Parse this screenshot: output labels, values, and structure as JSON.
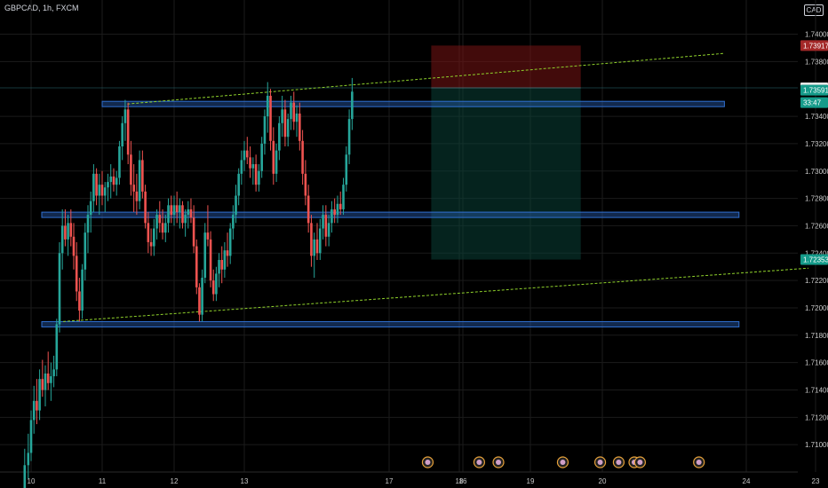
{
  "header": {
    "symbol_label": "GBPCAD, 1h, FXCM",
    "currency": "CAD"
  },
  "chart_data": {
    "type": "candlestick",
    "symbol": "GBPCAD",
    "interval": "1h",
    "source": "FXCM",
    "ylim": [
      1.708,
      1.7425
    ],
    "y_ticks": [
      "1.74000",
      "1.73800",
      "1.73400",
      "1.73200",
      "1.73000",
      "1.72800",
      "1.72600",
      "1.72400",
      "1.72200",
      "1.72000",
      "1.71800",
      "1.71600",
      "1.71400",
      "1.71200",
      "1.71000"
    ],
    "x_ticks": [
      "10",
      "11",
      "12",
      "13",
      "16",
      "17",
      "18",
      "19",
      "20",
      "23",
      "24"
    ],
    "price_labels": [
      {
        "value": 1.73917,
        "text": "1.73917",
        "color": "#a32828"
      },
      {
        "value": 1.73608,
        "text": "1.73608",
        "color": "#e6e6e6"
      },
      {
        "value": 1.73591,
        "text": "1.73591",
        "color": "#159b8a"
      },
      {
        "value": 1.735,
        "text": "33:47",
        "color": "#159b8a"
      },
      {
        "value": 1.72353,
        "text": "1.72353",
        "color": "#159b8a"
      }
    ],
    "horizontal_zones": [
      {
        "center": 1.7349,
        "start_day": 11.0,
        "end_day": 23.7
      },
      {
        "center": 1.7268,
        "start_day": 10.15,
        "end_day": 23.9
      },
      {
        "center": 1.7188,
        "start_day": 10.15,
        "end_day": 23.9
      }
    ],
    "channel_lines": [
      {
        "from": [
          11.35,
          1.7349
        ],
        "to": [
          23.7,
          1.7386
        ]
      },
      {
        "from": [
          10.45,
          1.719
        ],
        "to": [
          22.9,
          1.7229
        ]
      }
    ],
    "short_position": {
      "start_day": 17.6,
      "end_day": 19.7,
      "stop": 1.73917,
      "entry": 1.73608,
      "target": 1.72353
    },
    "current_price": 1.73608,
    "candles": [
      [
        9.91,
        1.7066,
        1.7097,
        1.7054,
        1.7085
      ],
      [
        9.96,
        1.7085,
        1.7108,
        1.7075,
        1.7094
      ],
      [
        10.0,
        1.7094,
        1.7125,
        1.7088,
        1.7118
      ],
      [
        10.04,
        1.7118,
        1.7143,
        1.7108,
        1.7132
      ],
      [
        10.08,
        1.7132,
        1.7148,
        1.7115,
        1.7125
      ],
      [
        10.12,
        1.7125,
        1.7155,
        1.7118,
        1.7148
      ],
      [
        10.16,
        1.7148,
        1.7162,
        1.7135,
        1.714
      ],
      [
        10.2,
        1.714,
        1.7158,
        1.7128,
        1.7152
      ],
      [
        10.24,
        1.7152,
        1.7168,
        1.714,
        1.7145
      ],
      [
        10.28,
        1.7145,
        1.716,
        1.7132,
        1.715
      ],
      [
        10.32,
        1.715,
        1.7165,
        1.7142,
        1.7155
      ],
      [
        10.36,
        1.7155,
        1.7192,
        1.715,
        1.7188
      ],
      [
        10.4,
        1.7188,
        1.7248,
        1.7182,
        1.724
      ],
      [
        10.44,
        1.724,
        1.7272,
        1.7228,
        1.726
      ],
      [
        10.48,
        1.726,
        1.7272,
        1.7245,
        1.725
      ],
      [
        10.52,
        1.725,
        1.7268,
        1.7238,
        1.7262
      ],
      [
        10.56,
        1.7262,
        1.7272,
        1.7245,
        1.7252
      ],
      [
        10.6,
        1.7252,
        1.7262,
        1.7228,
        1.7238
      ],
      [
        10.64,
        1.7238,
        1.7248,
        1.7205,
        1.7212
      ],
      [
        10.68,
        1.7212,
        1.7222,
        1.719,
        1.7198
      ],
      [
        10.72,
        1.7198,
        1.7232,
        1.7192,
        1.7228
      ],
      [
        10.76,
        1.7228,
        1.7262,
        1.722,
        1.7255
      ],
      [
        10.8,
        1.7255,
        1.7275,
        1.724,
        1.7268
      ],
      [
        10.84,
        1.7268,
        1.7285,
        1.7255,
        1.7278
      ],
      [
        10.88,
        1.7278,
        1.7305,
        1.727,
        1.7298
      ],
      [
        10.92,
        1.7298,
        1.7302,
        1.7275,
        1.7282
      ],
      [
        10.96,
        1.7282,
        1.7298,
        1.7268,
        1.729
      ],
      [
        11.0,
        1.729,
        1.73,
        1.7275,
        1.7282
      ],
      [
        11.04,
        1.7282,
        1.7292,
        1.727,
        1.7288
      ],
      [
        11.08,
        1.7288,
        1.7298,
        1.7278,
        1.7292
      ],
      [
        11.12,
        1.7292,
        1.7305,
        1.728,
        1.7296
      ],
      [
        11.16,
        1.7296,
        1.7302,
        1.7285,
        1.729
      ],
      [
        11.2,
        1.729,
        1.73,
        1.7282,
        1.7295
      ],
      [
        11.24,
        1.7295,
        1.7322,
        1.729,
        1.7318
      ],
      [
        11.28,
        1.7318,
        1.734,
        1.7308,
        1.7335
      ],
      [
        11.32,
        1.7335,
        1.7352,
        1.7322,
        1.7345
      ],
      [
        11.36,
        1.7345,
        1.735,
        1.7305,
        1.7312
      ],
      [
        11.4,
        1.7312,
        1.7322,
        1.7282,
        1.729
      ],
      [
        11.44,
        1.729,
        1.7305,
        1.727,
        1.7285
      ],
      [
        11.48,
        1.7285,
        1.7298,
        1.7268,
        1.7278
      ],
      [
        11.52,
        1.7278,
        1.7315,
        1.7272,
        1.7308
      ],
      [
        11.56,
        1.7308,
        1.7315,
        1.728,
        1.7285
      ],
      [
        11.6,
        1.7285,
        1.729,
        1.7258,
        1.7262
      ],
      [
        11.64,
        1.7262,
        1.727,
        1.724,
        1.7248
      ],
      [
        11.68,
        1.7248,
        1.7258,
        1.7238,
        1.7245
      ],
      [
        11.72,
        1.7245,
        1.7265,
        1.7238,
        1.7258
      ],
      [
        11.76,
        1.7258,
        1.7272,
        1.725,
        1.7268
      ],
      [
        11.8,
        1.7268,
        1.7278,
        1.7255,
        1.7262
      ],
      [
        11.84,
        1.7262,
        1.7272,
        1.725,
        1.7255
      ],
      [
        11.88,
        1.7255,
        1.7268,
        1.7248,
        1.7262
      ],
      [
        11.92,
        1.7262,
        1.728,
        1.7255,
        1.7275
      ],
      [
        11.96,
        1.7275,
        1.7282,
        1.7262,
        1.7268
      ],
      [
        12.0,
        1.7268,
        1.7282,
        1.726,
        1.7275
      ],
      [
        12.04,
        1.7275,
        1.7285,
        1.7262,
        1.727
      ],
      [
        12.08,
        1.727,
        1.728,
        1.7258,
        1.7275
      ],
      [
        12.12,
        1.7275,
        1.7278,
        1.7258,
        1.7262
      ],
      [
        12.16,
        1.7262,
        1.7272,
        1.7252,
        1.7268
      ],
      [
        12.2,
        1.7268,
        1.7278,
        1.7258,
        1.7272
      ],
      [
        12.24,
        1.7272,
        1.728,
        1.7262,
        1.7266
      ],
      [
        12.28,
        1.7266,
        1.7275,
        1.724,
        1.7245
      ],
      [
        12.32,
        1.7245,
        1.725,
        1.721,
        1.7215
      ],
      [
        12.36,
        1.7215,
        1.7218,
        1.719,
        1.7195
      ],
      [
        12.4,
        1.7195,
        1.7228,
        1.719,
        1.7222
      ],
      [
        12.44,
        1.7222,
        1.7262,
        1.7218,
        1.7255
      ],
      [
        12.48,
        1.7255,
        1.7275,
        1.7245,
        1.725
      ],
      [
        12.52,
        1.725,
        1.7256,
        1.7215,
        1.722
      ],
      [
        12.56,
        1.722,
        1.7228,
        1.7205,
        1.721
      ],
      [
        12.6,
        1.721,
        1.723,
        1.7205,
        1.7225
      ],
      [
        12.64,
        1.7225,
        1.724,
        1.7215,
        1.7235
      ],
      [
        12.68,
        1.7235,
        1.7245,
        1.7218,
        1.7228
      ],
      [
        12.72,
        1.7228,
        1.7248,
        1.7222,
        1.7242
      ],
      [
        12.76,
        1.7242,
        1.7255,
        1.723,
        1.7238
      ],
      [
        12.8,
        1.7238,
        1.7262,
        1.7232,
        1.7258
      ],
      [
        12.84,
        1.7258,
        1.7275,
        1.725,
        1.7268
      ],
      [
        12.88,
        1.7268,
        1.729,
        1.7262,
        1.7282
      ],
      [
        12.92,
        1.7282,
        1.7302,
        1.7275,
        1.7298
      ],
      [
        12.96,
        1.7298,
        1.7315,
        1.729,
        1.7308
      ],
      [
        13.0,
        1.7308,
        1.7322,
        1.73,
        1.7315
      ],
      [
        13.04,
        1.7315,
        1.7325,
        1.7305,
        1.731
      ],
      [
        13.08,
        1.731,
        1.7318,
        1.7295,
        1.7302
      ],
      [
        13.12,
        1.7302,
        1.731,
        1.729,
        1.7305
      ],
      [
        13.16,
        1.7305,
        1.7312,
        1.7285,
        1.729
      ],
      [
        13.2,
        1.729,
        1.7305,
        1.7285,
        1.73
      ],
      [
        13.24,
        1.73,
        1.7325,
        1.7295,
        1.732
      ],
      [
        13.28,
        1.732,
        1.7345,
        1.7312,
        1.734
      ],
      [
        13.32,
        1.734,
        1.7365,
        1.7328,
        1.7355
      ],
      [
        13.36,
        1.7355,
        1.736,
        1.7315,
        1.7322
      ],
      [
        13.4,
        1.7322,
        1.7332,
        1.729,
        1.7298
      ],
      [
        13.44,
        1.7298,
        1.732,
        1.7292,
        1.7315
      ],
      [
        13.48,
        1.7315,
        1.734,
        1.7308,
        1.7335
      ],
      [
        13.52,
        1.7335,
        1.7355,
        1.7325,
        1.7345
      ],
      [
        13.56,
        1.7345,
        1.7352,
        1.7318,
        1.7325
      ],
      [
        13.6,
        1.7325,
        1.7342,
        1.7318,
        1.7338
      ],
      [
        13.64,
        1.7338,
        1.7355,
        1.733,
        1.735
      ],
      [
        13.68,
        1.735,
        1.7358,
        1.733,
        1.7336
      ],
      [
        13.72,
        1.7336,
        1.7348,
        1.7325,
        1.7342
      ],
      [
        13.76,
        1.7342,
        1.735,
        1.7315,
        1.7322
      ],
      [
        13.8,
        1.7322,
        1.733,
        1.729,
        1.7298
      ],
      [
        13.84,
        1.7298,
        1.7308,
        1.7275,
        1.7282
      ],
      [
        13.88,
        1.7282,
        1.729,
        1.7255,
        1.7262
      ],
      [
        13.92,
        1.7262,
        1.7268,
        1.723,
        1.7238
      ],
      [
        13.96,
        1.7238,
        1.7255,
        1.7222,
        1.725
      ],
      [
        14.0,
        1.725,
        1.7262,
        1.7235,
        1.724
      ],
      [
        14.04,
        1.724,
        1.7265,
        1.7235,
        1.7258
      ],
      [
        14.08,
        1.7258,
        1.7275,
        1.725,
        1.7268
      ],
      [
        14.12,
        1.7268,
        1.7275,
        1.7245,
        1.7252
      ],
      [
        14.16,
        1.7252,
        1.7268,
        1.7245,
        1.7262
      ],
      [
        14.2,
        1.7262,
        1.7278,
        1.7255,
        1.7272
      ],
      [
        14.24,
        1.7272,
        1.728,
        1.7262,
        1.7268
      ],
      [
        14.28,
        1.7268,
        1.7282,
        1.7262,
        1.7276
      ],
      [
        14.32,
        1.7276,
        1.7285,
        1.7268,
        1.7272
      ],
      [
        14.36,
        1.7272,
        1.7295,
        1.7268,
        1.729
      ],
      [
        14.4,
        1.729,
        1.7318,
        1.7285,
        1.7312
      ],
      [
        14.44,
        1.7312,
        1.7345,
        1.7305,
        1.7338
      ],
      [
        14.48,
        1.7338,
        1.7368,
        1.733,
        1.7358
      ]
    ]
  }
}
